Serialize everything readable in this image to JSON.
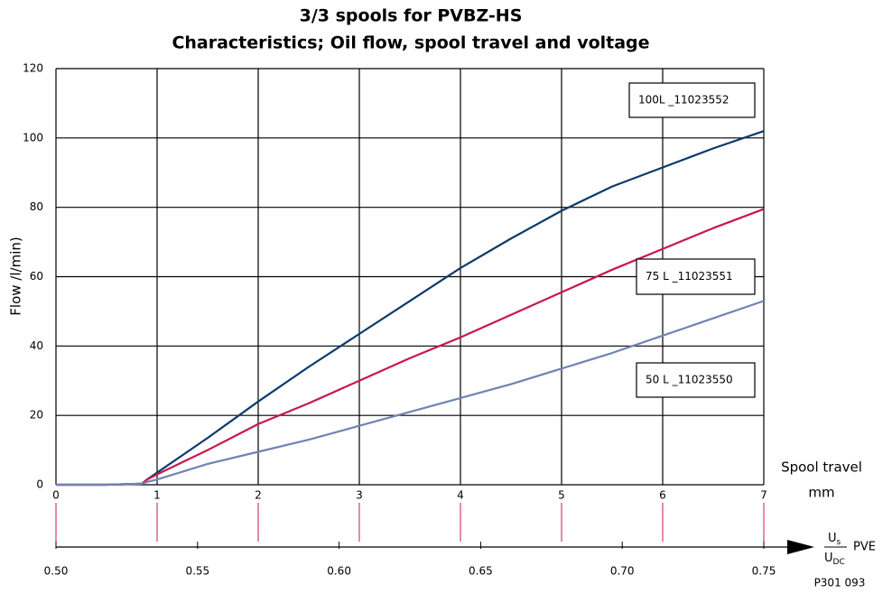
{
  "chart_data": {
    "type": "line",
    "title": [
      "3/3 spools for PVBZ-HS",
      "Characteristics; Oil flow, spool travel and voltage"
    ],
    "y_label": "Flow /l/min)",
    "x_label": "Spool travel",
    "x_unit": "mm",
    "x2_label": {
      "num": "U",
      "num_sub": "s",
      "den": "U",
      "den_sub": "DC",
      "suffix": "PVE"
    },
    "figure_id": "P301 093",
    "xlim": [
      0,
      7
    ],
    "xticks": [
      0,
      1,
      2,
      3,
      4,
      5,
      6,
      7
    ],
    "ylim": [
      0,
      120
    ],
    "yticks": [
      0,
      20,
      40,
      60,
      80,
      100,
      120
    ],
    "x2lim": [
      0.5,
      0.75
    ],
    "x2ticks": [
      {
        "value": 0.5,
        "label": "0.50"
      },
      {
        "value": 0.55,
        "label": "0.55"
      },
      {
        "value": 0.6,
        "label": "0.60"
      },
      {
        "value": 0.65,
        "label": "0.65"
      },
      {
        "value": 0.7,
        "label": "0.70"
      },
      {
        "value": 0.75,
        "label": "0.75"
      }
    ],
    "grid": true,
    "x": [
      0,
      0.5,
      0.85,
      0.9,
      1,
      1.5,
      2,
      2.5,
      3,
      3.5,
      4,
      4.5,
      5,
      5.5,
      6,
      6.5,
      7
    ],
    "series": [
      {
        "name": "100L _11023552",
        "color": "#0b3a6b",
        "values": [
          0,
          0,
          0.3,
          1.5,
          3.5,
          13.5,
          24,
          34,
          43.5,
          53,
          62.5,
          71,
          79,
          86,
          91.5,
          97,
          102
        ]
      },
      {
        "name": "75 L _11023551",
        "color": "#c8174f",
        "values": [
          0,
          0,
          0.3,
          1.5,
          3,
          10,
          17.5,
          23.5,
          30,
          36.5,
          42.5,
          49,
          55.5,
          62,
          68,
          74,
          79.5
        ]
      },
      {
        "name": "50 L _11023550",
        "color": "#7083b3",
        "values": [
          0,
          0,
          0.3,
          0.8,
          1.5,
          6,
          9.5,
          13,
          17,
          21,
          25,
          29,
          33.5,
          38,
          43,
          48,
          53
        ]
      }
    ]
  }
}
